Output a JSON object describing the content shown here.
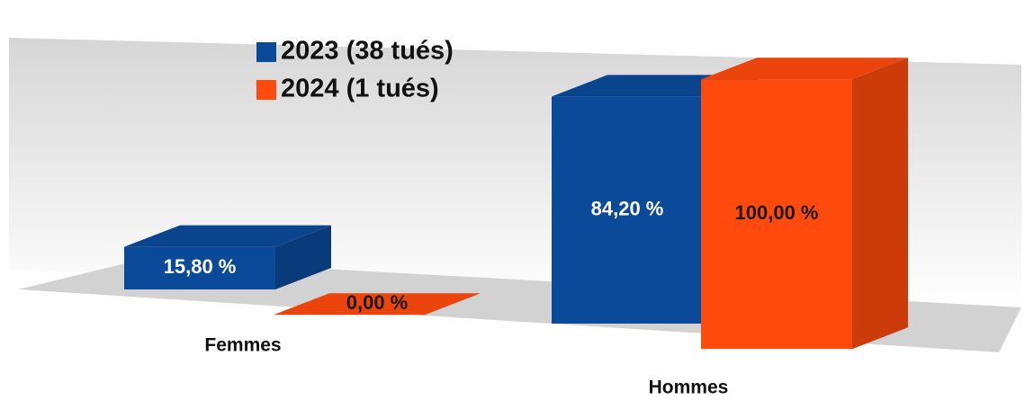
{
  "chart_data": {
    "type": "bar3d",
    "categories": [
      "Femmes",
      "Hommes"
    ],
    "series": [
      {
        "name": "2023 (38 tués)",
        "color": "#0b4a99",
        "values": [
          15.8,
          84.2
        ],
        "value_labels": [
          "15,80 %",
          "84,20 %"
        ]
      },
      {
        "name": "2024 (1 tués)",
        "color": "#ff4a0d",
        "values": [
          0,
          100
        ],
        "value_labels": [
          "0,00 %",
          "100,00 %"
        ]
      }
    ]
  }
}
